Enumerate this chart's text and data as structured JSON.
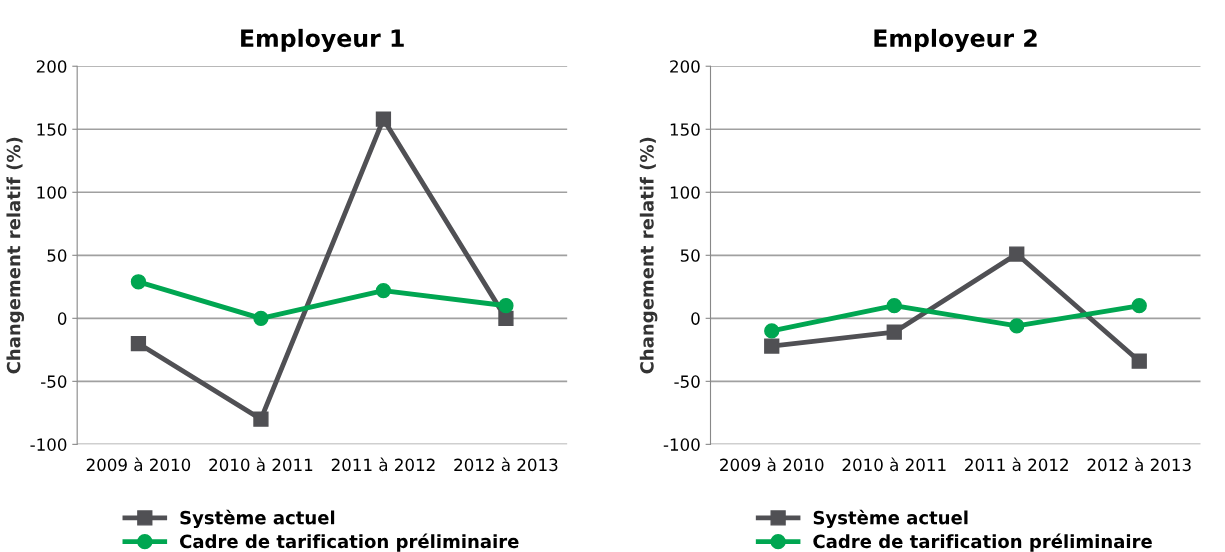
{
  "chart_data": [
    {
      "type": "line",
      "title": "Employeur 1",
      "ylabel": "Changement relatif (%)",
      "categories": [
        "2009 à 2010",
        "2010 à 2011",
        "2011 à 2012",
        "2012 à 2013"
      ],
      "series": [
        {
          "name": "Système actuel",
          "color": "#505054",
          "marker": "square",
          "values": [
            -20,
            -80,
            158,
            0
          ]
        },
        {
          "name": "Cadre de tarification préliminaire",
          "color": "#00a651",
          "marker": "circle",
          "values": [
            29,
            0,
            22,
            10
          ]
        }
      ],
      "ylim": [
        -100,
        200
      ],
      "yticks": [
        -100,
        -50,
        0,
        50,
        100,
        150,
        200
      ],
      "grid": "y",
      "legend": "bottom",
      "line_style": "solid"
    },
    {
      "type": "line",
      "title": "Employeur 2",
      "ylabel": "Changement relatif (%)",
      "categories": [
        "2009 à 2010",
        "2010 à 2011",
        "2011 à 2012",
        "2012 à 2013"
      ],
      "series": [
        {
          "name": "Système actuel",
          "color": "#505054",
          "marker": "square",
          "values": [
            -22,
            -11,
            51,
            -34
          ]
        },
        {
          "name": "Cadre de tarification préliminaire",
          "color": "#00a651",
          "marker": "circle",
          "values": [
            -10,
            10,
            -6,
            10
          ]
        }
      ],
      "ylim": [
        -100,
        200
      ],
      "yticks": [
        -100,
        -50,
        0,
        50,
        100,
        150,
        200
      ],
      "grid": "y",
      "legend": "bottom",
      "line_style": "solid"
    }
  ]
}
